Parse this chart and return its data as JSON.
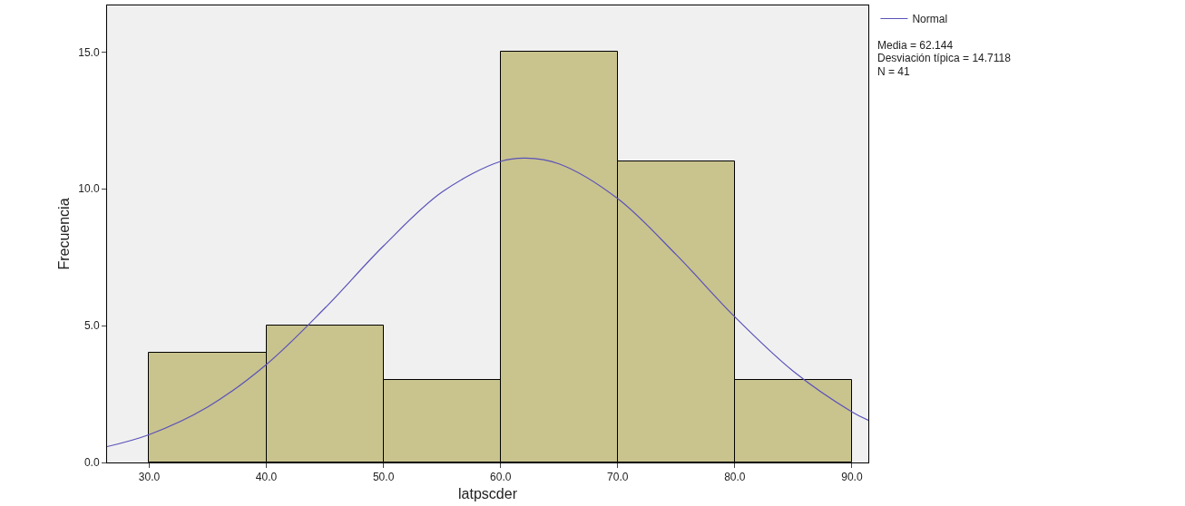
{
  "chart_data": {
    "type": "histogram",
    "xlabel": "latpscder",
    "ylabel": "Frecuencia",
    "bins": [
      30,
      40,
      50,
      60,
      70,
      80,
      90
    ],
    "values": [
      4,
      5,
      3,
      15,
      11,
      3
    ],
    "color": "#c9c38e",
    "series": [
      {
        "name": "Normal",
        "type": "line",
        "color": "#5a52b8",
        "x": [
          26.4,
          30,
          35,
          40,
          45,
          50,
          55,
          60,
          62.144,
          65,
          70,
          75,
          80,
          85,
          90,
          91.4
        ],
        "values": [
          0.58,
          1.02,
          2.03,
          3.58,
          5.64,
          7.91,
          9.88,
          11.0,
          11.12,
          10.91,
          9.64,
          7.59,
          5.32,
          3.33,
          1.85,
          1.54
        ]
      }
    ],
    "xlim": [
      26.4,
      91.4
    ],
    "ylim": [
      0,
      16.7
    ],
    "xticks": [
      {
        "value": 30,
        "label": "30.0"
      },
      {
        "value": 40,
        "label": "40.0"
      },
      {
        "value": 50,
        "label": "50.0"
      },
      {
        "value": 60,
        "label": "60.0"
      },
      {
        "value": 70,
        "label": "70.0"
      },
      {
        "value": 80,
        "label": "80.0"
      },
      {
        "value": 90,
        "label": "90.0"
      }
    ],
    "yticks": [
      {
        "value": 0,
        "label": "0.0"
      },
      {
        "value": 5,
        "label": "5.0"
      },
      {
        "value": 10,
        "label": "10.0"
      },
      {
        "value": 15,
        "label": "15.0"
      }
    ],
    "annotations": [
      "Media = 62.144",
      "Desviación típica = 14.7118",
      "N = 41"
    ],
    "legend": "top right",
    "grid": false
  }
}
